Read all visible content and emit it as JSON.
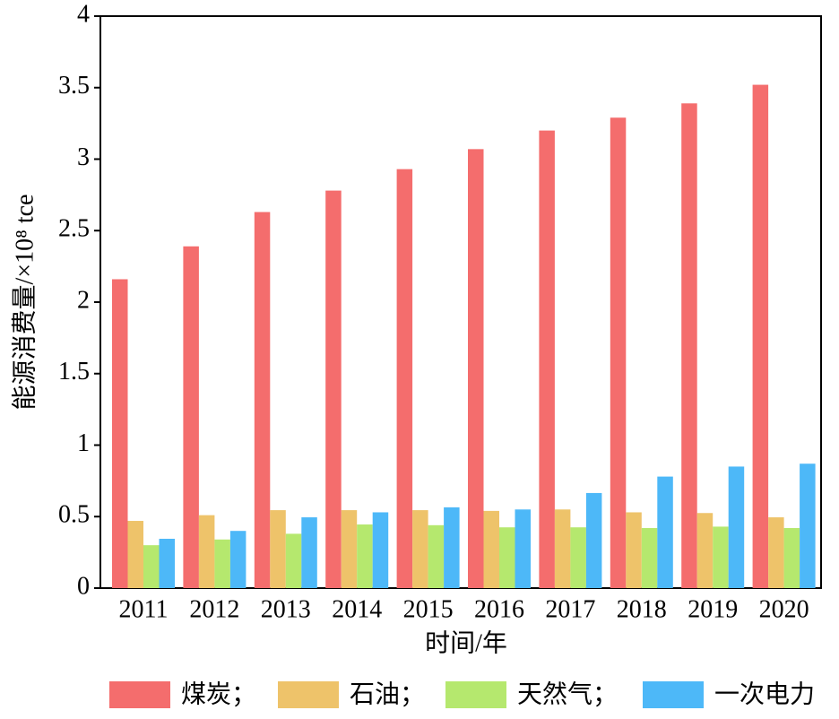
{
  "chart_data": {
    "type": "bar",
    "categories": [
      "2011",
      "2012",
      "2013",
      "2014",
      "2015",
      "2016",
      "2017",
      "2018",
      "2019",
      "2020"
    ],
    "series": [
      {
        "name": "煤炭；",
        "color": "#f46d6d",
        "values": [
          2.16,
          2.39,
          2.63,
          2.78,
          2.93,
          3.07,
          3.2,
          3.29,
          3.39,
          3.52
        ]
      },
      {
        "name": "石油；",
        "color": "#eec36a",
        "values": [
          0.47,
          0.51,
          0.545,
          0.545,
          0.545,
          0.54,
          0.55,
          0.53,
          0.525,
          0.495
        ]
      },
      {
        "name": "天然气；",
        "color": "#b5e86e",
        "values": [
          0.3,
          0.34,
          0.38,
          0.445,
          0.44,
          0.425,
          0.425,
          0.42,
          0.43,
          0.42
        ]
      },
      {
        "name": "一次电力",
        "color": "#4db8f8",
        "values": [
          0.345,
          0.4,
          0.495,
          0.53,
          0.565,
          0.55,
          0.665,
          0.78,
          0.85,
          0.87
        ]
      }
    ],
    "xlabel": "时间/年",
    "ylabel": "能源消费量/×10⁸ tce",
    "ylim": [
      0,
      4
    ],
    "yticks": [
      0,
      0.5,
      1,
      1.5,
      2,
      2.5,
      3,
      3.5,
      4
    ],
    "legend": "bottom"
  }
}
